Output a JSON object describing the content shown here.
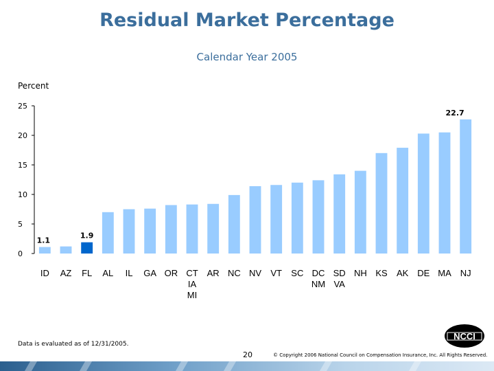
{
  "header": {
    "title": "Residual Market Percentage",
    "subtitle": "Calendar Year 2005"
  },
  "axis": {
    "ylabel": "Percent"
  },
  "chart_data": {
    "type": "bar",
    "title": "Residual Market Percentage",
    "subtitle": "Calendar Year 2005",
    "ylabel": "Percent",
    "xlabel": "",
    "ylim": [
      0,
      25
    ],
    "yticks": [
      0,
      5,
      10,
      15,
      20,
      25
    ],
    "grid": false,
    "legend": "none",
    "categories": [
      "ID",
      "AZ",
      "FL",
      "AL",
      "IL",
      "GA",
      "OR",
      "CT\nIA\nMI",
      "AR",
      "NC",
      "NV",
      "VT",
      "SC",
      "DC\nNM",
      "SD\nVA",
      "NH",
      "KS",
      "AK",
      "DE",
      "MA",
      "NJ"
    ],
    "values": [
      1.1,
      1.2,
      1.9,
      7.0,
      7.5,
      7.6,
      8.2,
      8.3,
      8.4,
      9.9,
      11.4,
      11.6,
      12.0,
      12.4,
      13.4,
      14.0,
      17.0,
      17.9,
      20.3,
      20.5,
      22.7
    ],
    "value_labels": [
      {
        "index": 0,
        "text": "1.1"
      },
      {
        "index": 2,
        "text": "1.9"
      },
      {
        "index": 20,
        "text": "22.7"
      }
    ],
    "colors": {
      "bar": "#99ccff",
      "highlight": "#0066cc",
      "highlight_index": 2
    }
  },
  "footer": {
    "note": "Data is evaluated as of 12/31/2005.",
    "page_number": "20",
    "copyright": "© Copyright 2006 National Council on Compensation Insurance, Inc. All Rights Reserved.",
    "logo_text": "NCCI"
  }
}
